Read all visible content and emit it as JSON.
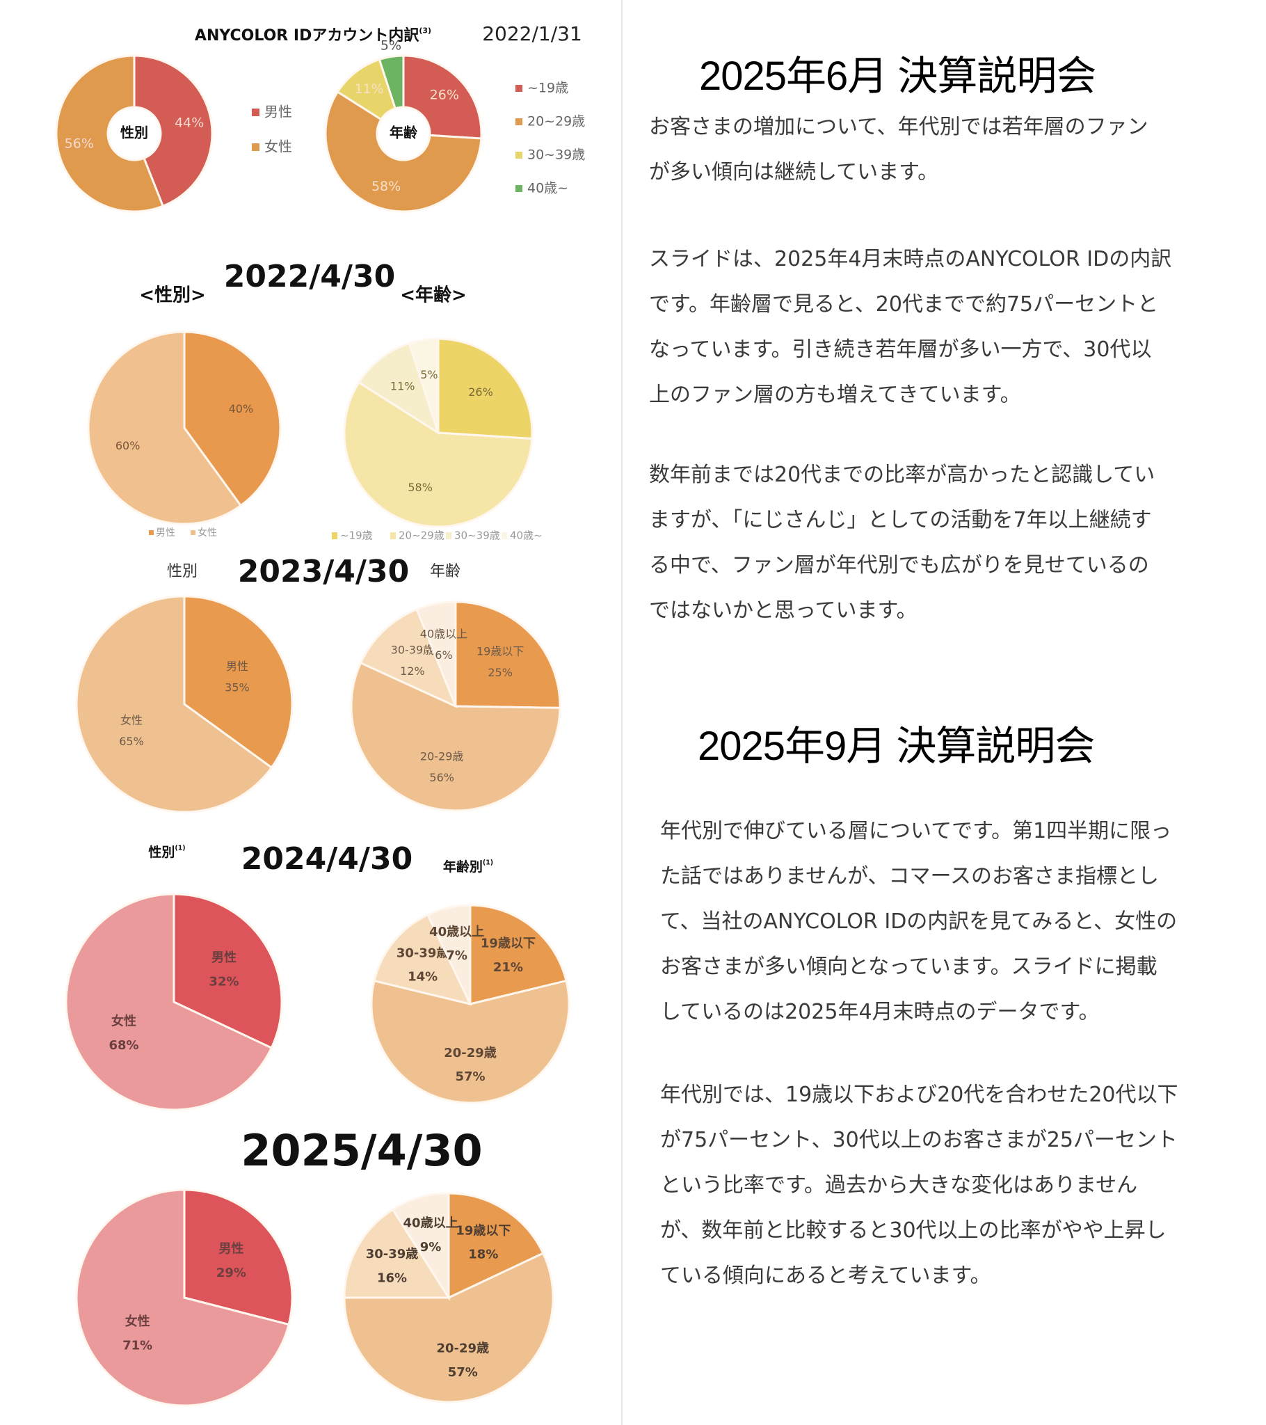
{
  "chart_data": [
    {
      "type": "pie",
      "variant": "donut",
      "section": "2022/1/31",
      "title": "ANYCOLOR IDアカウント内訳",
      "title_note": "(3)",
      "date": "2022/1/31",
      "center_label": "性別",
      "categories": [
        "男性",
        "女性"
      ],
      "values": [
        44,
        56
      ],
      "labels": [
        "44%",
        "56%"
      ],
      "colors": [
        "#d35c55",
        "#e09a4e"
      ],
      "legend": [
        "男性",
        "女性"
      ],
      "legend_position": "right"
    },
    {
      "type": "pie",
      "variant": "donut",
      "section": "2022/1/31",
      "center_label": "年齢",
      "categories": [
        "~19歳",
        "20~29歳",
        "30~39歳",
        "40歳~"
      ],
      "values": [
        26,
        58,
        11,
        5
      ],
      "labels": [
        "26%",
        "58%",
        "11%",
        "5%"
      ],
      "colors": [
        "#d35c55",
        "#e09a4e",
        "#e8d56a",
        "#6cb462"
      ],
      "legend": [
        "~19歳",
        "20~29歳",
        "30~39歳",
        "40歳~"
      ],
      "legend_position": "right"
    },
    {
      "type": "pie",
      "section": "2022/4/30",
      "title": "2022/4/30",
      "subtitle": "<性別>",
      "categories": [
        "男性",
        "女性"
      ],
      "values": [
        40,
        60
      ],
      "labels": [
        "40%",
        "60%"
      ],
      "colors": [
        "#e8994d",
        "#f0c08e"
      ],
      "legend": [
        "男性",
        "女性"
      ],
      "legend_position": "bottom"
    },
    {
      "type": "pie",
      "section": "2022/4/30",
      "subtitle": "<年齢>",
      "categories": [
        "~19歳",
        "20~29歳",
        "30~39歳",
        "40歳~"
      ],
      "values": [
        26,
        58,
        11,
        5
      ],
      "labels": [
        "26%",
        "58%",
        "11%",
        "5%"
      ],
      "colors": [
        "#ecd466",
        "#f5e6a8",
        "#f6eecb",
        "#fbf6e3"
      ],
      "legend": [
        "~19歳",
        "20~29歳",
        "30~39歳",
        "40歳~"
      ],
      "legend_position": "bottom"
    },
    {
      "type": "pie",
      "section": "2023/4/30",
      "title": "2023/4/30",
      "subtitle": "性別",
      "categories": [
        "男性",
        "女性"
      ],
      "values": [
        35,
        65
      ],
      "labels": [
        "男性\n35%",
        "女性\n65%"
      ],
      "colors": [
        "#e89a4f",
        "#efc190"
      ]
    },
    {
      "type": "pie",
      "section": "2023/4/30",
      "subtitle": "年齢",
      "categories": [
        "19歳以下",
        "20-29歳",
        "30-39歳",
        "40歳以上"
      ],
      "values": [
        25,
        56,
        12,
        6
      ],
      "labels": [
        "19歳以下\n25%",
        "20-29歳\n56%",
        "30-39歳\n12%",
        "40歳以上\n6%"
      ],
      "colors": [
        "#e89a4f",
        "#efc190",
        "#f7dcbc",
        "#fbeee0"
      ]
    },
    {
      "type": "pie",
      "section": "2024/4/30",
      "title": "2024/4/30",
      "subtitle": "性別",
      "subtitle_note": "(1)",
      "categories": [
        "男性",
        "女性"
      ],
      "values": [
        32,
        68
      ],
      "labels": [
        "男性\n32%",
        "女性\n68%"
      ],
      "colors": [
        "#dd555a",
        "#eb9a9c"
      ]
    },
    {
      "type": "pie",
      "section": "2024/4/30",
      "subtitle": "年齢別",
      "subtitle_note": "(1)",
      "categories": [
        "19歳以下",
        "20-29歳",
        "30-39歳",
        "40歳以上"
      ],
      "values": [
        21,
        57,
        14,
        7
      ],
      "labels": [
        "19歳以下\n21%",
        "20-29歳\n57%",
        "30-39歳\n14%",
        "40歳以上\n7%"
      ],
      "colors": [
        "#e89a4f",
        "#efc190",
        "#f7dcbc",
        "#fbeee0"
      ]
    },
    {
      "type": "pie",
      "section": "2025/4/30",
      "title": "2025/4/30",
      "categories": [
        "男性",
        "女性"
      ],
      "values": [
        29,
        71
      ],
      "labels": [
        "男性\n29%",
        "女性\n71%"
      ],
      "colors": [
        "#dd555a",
        "#eb9a9c"
      ]
    },
    {
      "type": "pie",
      "section": "2025/4/30",
      "categories": [
        "19歳以下",
        "20-29歳",
        "30-39歳",
        "40歳以上"
      ],
      "values": [
        18,
        57,
        16,
        9
      ],
      "labels": [
        "19歳以下\n18%",
        "20-29歳\n57%",
        "30-39歳\n16%",
        "40歳以上\n9%"
      ],
      "colors": [
        "#e89a4f",
        "#efc190",
        "#f7dcbc",
        "#fbeee0"
      ]
    }
  ],
  "right": {
    "june": {
      "heading": "2025年6月 決算説明会",
      "paragraphs": [
        "お客さまの増加について、年代別では若年層のファン\nが多い傾向は継続しています。",
        "スライドは、2025年4月末時点のANYCOLOR IDの内訳\nです。年齢層で見ると、20代までで約75パーセントと\nなっています。引き続き若年層が多い一方で、30代以\n上のファン層の方も増えてきています。",
        "数年前までは20代までの比率が高かったと認識してい\nますが、「にじさんじ」としての活動を7年以上継続す\nる中で、ファン層が年代別でも広がりを見せているの\nではないかと思っています。"
      ]
    },
    "september": {
      "heading": "2025年9月 決算説明会",
      "paragraphs": [
        "年代別で伸びている層についてです。第1四半期に限っ\nた話ではありませんが、コマースのお客さま指標とし\nて、当社のANYCOLOR IDの内訳を見てみると、女性の\nお客さまが多い傾向となっています。スライドに掲載\nしているのは2025年4月末時点のデータです。",
        "年代別では、19歳以下および20代を合わせた20代以下\nが75パーセント、30代以上のお客さまが25パーセント\nという比率です。過去から大きな変化はありません\nが、数年前と比較すると30代以上の比率がやや上昇し\nている傾向にあると考えています。"
      ]
    }
  }
}
